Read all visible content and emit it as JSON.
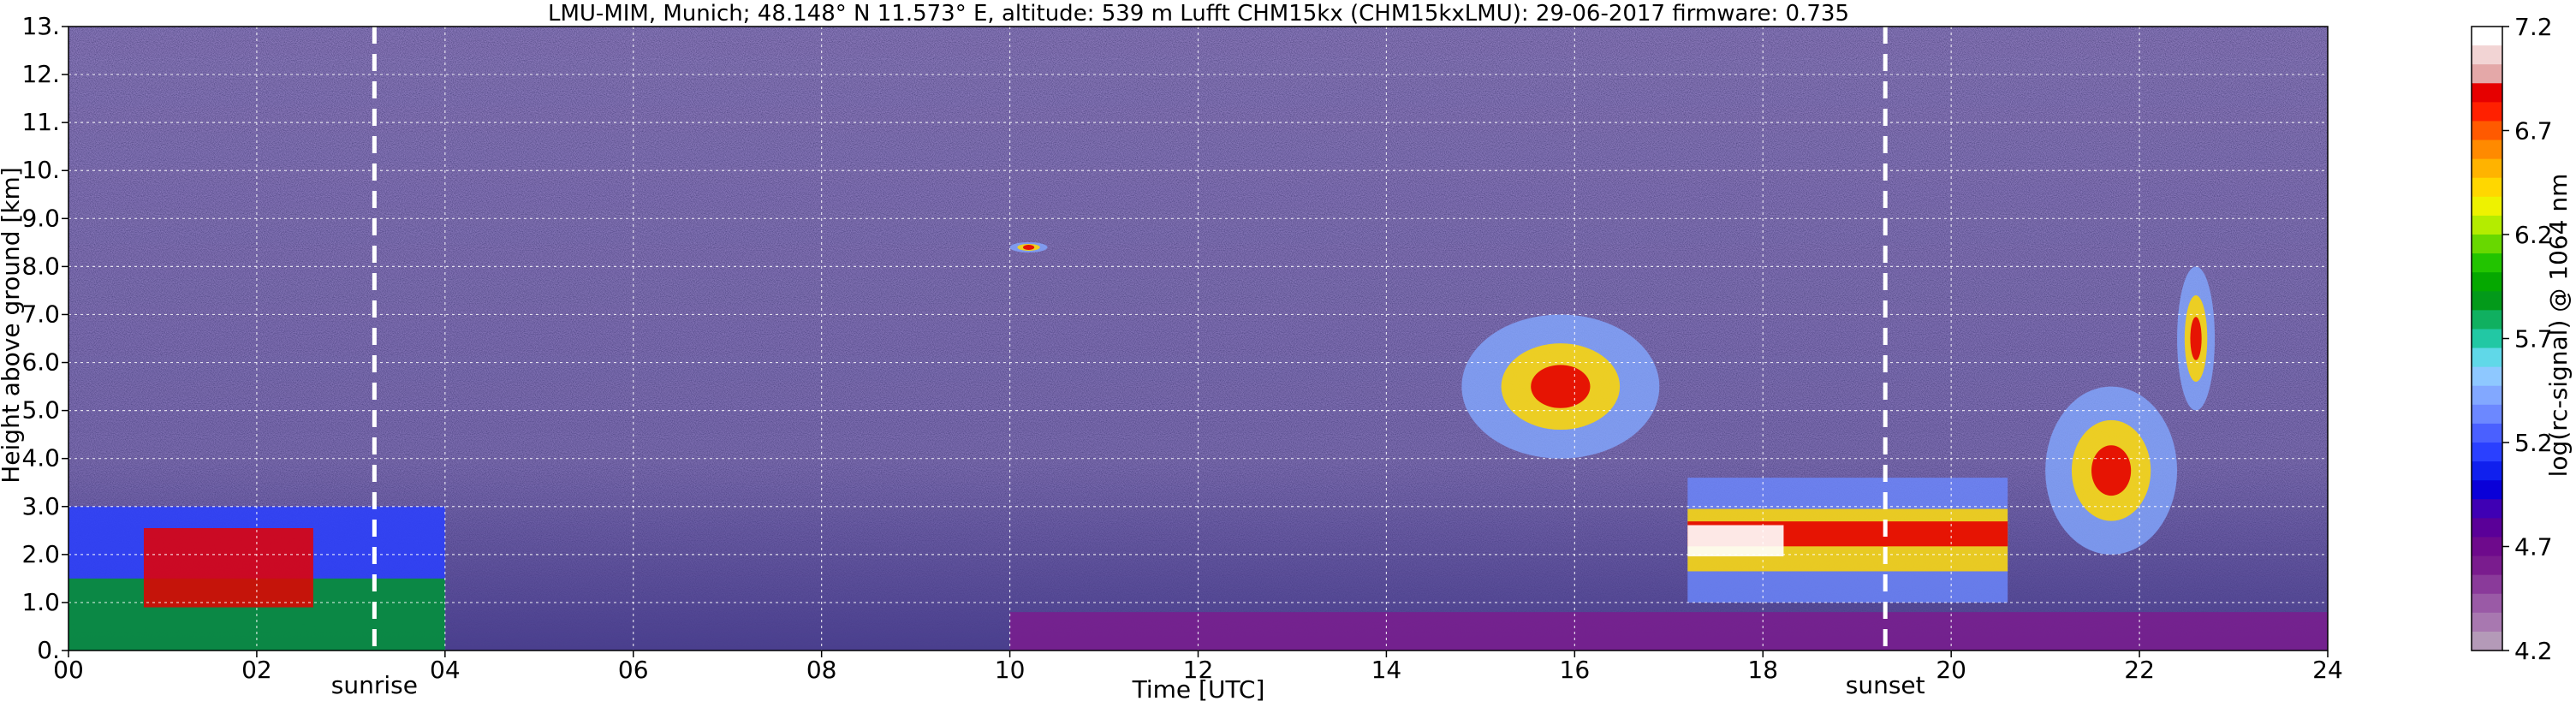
{
  "chart_data": [
    {
      "type": "heatmap",
      "title": "LMU-MIM, Munich; 48.148° N 11.573° E, altitude: 539 m    Lufft CHM15kx (CHM15kxLMU): 29-06-2017    firmware: 0.735",
      "xlabel": "Time [UTC]",
      "ylabel": "Height above ground [km]",
      "xlim": [
        0,
        24
      ],
      "ylim": [
        0,
        13
      ],
      "x_ticks": [
        "00",
        "02",
        "04",
        "06",
        "08",
        "10",
        "12",
        "14",
        "16",
        "18",
        "20",
        "22",
        "24"
      ],
      "y_ticks": [
        "0.",
        "1.0",
        "2.0",
        "3.0",
        "4.0",
        "5.0",
        "6.0",
        "7.0",
        "8.0",
        "9.0",
        "10.",
        "11.",
        "12.",
        "13."
      ],
      "grid": true,
      "background": "noisy signal (purple/dark) above ~4 km",
      "markers": [
        {
          "label": "sunrise",
          "x": 3.25
        },
        {
          "label": "sunset",
          "x": 19.3
        }
      ],
      "features": [
        {
          "kind": "boundary layer aerosol",
          "x": [
            0,
            4
          ],
          "y_top": 3.0
        },
        {
          "kind": "cloud",
          "x": [
            10.0,
            10.4
          ],
          "y": [
            8.3,
            8.5
          ]
        },
        {
          "kind": "cloud",
          "x": [
            14.8,
            16.9
          ],
          "y": [
            4.0,
            7.0
          ]
        },
        {
          "kind": "cloud layer",
          "x": [
            17.2,
            20.6
          ],
          "y": [
            1.0,
            3.6
          ]
        },
        {
          "kind": "cloud",
          "x": [
            21.0,
            22.4
          ],
          "y": [
            2.0,
            5.5
          ]
        },
        {
          "kind": "cloud",
          "x": [
            22.4,
            22.8
          ],
          "y": [
            5.0,
            8.0
          ]
        }
      ]
    },
    {
      "type": "colorbar",
      "label": "log(rc-signal) @ 1064 nm",
      "range": [
        4.2,
        7.2
      ],
      "ticks": [
        "7.2",
        "6.7",
        "6.2",
        "5.7",
        "5.2",
        "4.7",
        "4.2"
      ],
      "colors": [
        "#ffffff",
        "#f2d4d4",
        "#e4a8a8",
        "#e60000",
        "#ff2000",
        "#ff5a00",
        "#ff8a00",
        "#ffb300",
        "#ffd700",
        "#eef200",
        "#b4ec00",
        "#68d800",
        "#22c400",
        "#05a800",
        "#039a1a",
        "#10b060",
        "#22c8a4",
        "#60d8e8",
        "#8ec8ff",
        "#82a8ff",
        "#6c88ff",
        "#4a60ff",
        "#2a40ff",
        "#1020ee",
        "#0a00d8",
        "#3f00b4",
        "#5a0098",
        "#6e0a8c",
        "#7a1c8e",
        "#8a3a9a",
        "#9a5aa6",
        "#a878b0",
        "#b49ab8"
      ]
    }
  ]
}
